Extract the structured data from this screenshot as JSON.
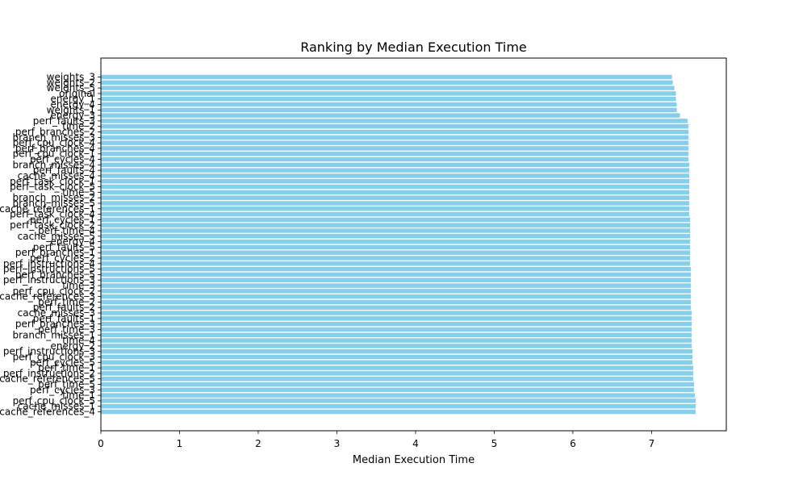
{
  "chart_data": {
    "type": "bar",
    "orientation": "horizontal",
    "title": "Ranking by Median Execution Time",
    "xlabel": "Median Execution Time",
    "ylabel": "",
    "xlim": [
      0,
      7.95
    ],
    "xticks": [
      0,
      1,
      2,
      3,
      4,
      5,
      6,
      7
    ],
    "grid": false,
    "legend": "none",
    "bar_color": "#87ceeb",
    "categories": [
      "weights_3",
      "weights_2",
      "weights_5",
      "original",
      "energy_1",
      "energy_4",
      "weights_1",
      "energy_3",
      "perf_faults_3",
      "time_2",
      "perf_branches_2",
      "branch_misses_3",
      "perf_cpu_clock_4",
      "perf_branches_4",
      "perf_cpu_clock_1",
      "perf_cycles_4",
      "branch_misses_4",
      "perf_faults_4",
      "cache_misses_4",
      "perf_task_clock_1",
      "perf_task_clock_5",
      "time_5",
      "branch_misses_2",
      "branch_misses_5",
      "cache_references_1",
      "perf_task_clock_4",
      "perf_cycles_1",
      "perf_task_clock_2",
      "perf_time_4",
      "cache_misses_5",
      "energy_4",
      "perf_faults_5",
      "perf_branches_1",
      "perf_cycles_2",
      "perf_instructions_4",
      "perf_instructions_5",
      "perf_branches_5",
      "perf_instructions_3",
      "time_3",
      "perf_cpu_clock_2",
      "cache_references_3",
      "perf_time_2",
      "perf_faults_2",
      "cache_misses_3",
      "perf_faults_1",
      "perf_branches_3",
      "perf_time_3",
      "branch_misses_1",
      "time_4",
      "energy_2",
      "perf_instructions_3",
      "perf_cpu_clock_3",
      "perf_cycles_5",
      "perf_time_1",
      "perf_instructions_2",
      "cache_references_5",
      "perf_time_5",
      "perf_cycles_3",
      "time_1",
      "perf_cpu_clock_5",
      "cache_misses_1",
      "cache_references_4"
    ],
    "values": [
      7.26,
      7.27,
      7.29,
      7.31,
      7.31,
      7.32,
      7.32,
      7.36,
      7.46,
      7.47,
      7.47,
      7.47,
      7.47,
      7.47,
      7.47,
      7.47,
      7.48,
      7.48,
      7.48,
      7.48,
      7.48,
      7.48,
      7.48,
      7.48,
      7.48,
      7.48,
      7.49,
      7.49,
      7.49,
      7.49,
      7.49,
      7.49,
      7.49,
      7.49,
      7.49,
      7.5,
      7.5,
      7.5,
      7.5,
      7.5,
      7.5,
      7.5,
      7.5,
      7.51,
      7.51,
      7.51,
      7.51,
      7.51,
      7.51,
      7.51,
      7.52,
      7.52,
      7.52,
      7.53,
      7.53,
      7.53,
      7.54,
      7.54,
      7.55,
      7.56,
      7.56,
      7.56
    ]
  }
}
